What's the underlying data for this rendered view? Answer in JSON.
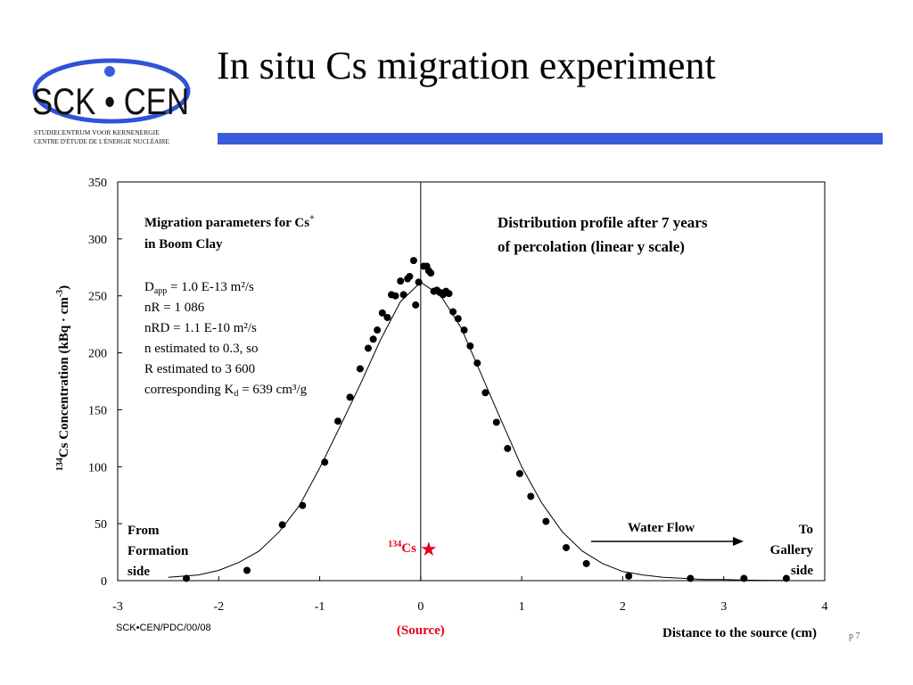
{
  "header": {
    "title": "In situ Cs migration experiment",
    "accent_color": "#3b5bdb"
  },
  "logo": {
    "name": "SCK • CEN",
    "line1": "STUDIECENTRUM VOOR KERNENERGIE",
    "line2": "CENTRE D'ÉTUDE DE L'ÉNERGIE NUCLÉAIRE"
  },
  "chart_data": {
    "type": "scatter",
    "xlabel": "Distance to the source (cm)",
    "ylabel_sup": "134",
    "ylabel": "Cs Concentration (kBq · cm",
    "ylabel_unit_sup": "-3",
    "ylabel_close": ")",
    "xlim": [
      -3,
      4
    ],
    "ylim": [
      0,
      350
    ],
    "xticks": [
      "-3",
      "-2",
      "-1",
      "0",
      "1",
      "2",
      "3",
      "4"
    ],
    "yticks": [
      "0",
      "50",
      "100",
      "150",
      "200",
      "250",
      "300",
      "350"
    ],
    "series": [
      {
        "marker": "filled-circle",
        "x": [
          -2.32,
          -1.72,
          -1.37,
          -1.17,
          -0.95,
          -0.82,
          -0.7,
          -0.6,
          -0.52,
          -0.47,
          -0.43,
          -0.38,
          -0.33,
          -0.29,
          -0.25,
          -0.2,
          -0.17,
          -0.13,
          -0.11,
          -0.07,
          -0.05,
          -0.02,
          0.03,
          0.06,
          0.08,
          0.1,
          0.13,
          0.16,
          0.19,
          0.22,
          0.25,
          0.28,
          0.32,
          0.37,
          0.43,
          0.49,
          0.56,
          0.64,
          0.75,
          0.86,
          0.98,
          1.09,
          1.24,
          1.44,
          1.64,
          2.06,
          2.67,
          3.2,
          3.62
        ],
        "y": [
          2,
          9,
          49,
          66,
          104,
          140,
          161,
          186,
          204,
          212,
          220,
          235,
          231,
          251,
          250,
          263,
          251,
          265,
          267,
          281,
          242,
          262,
          276,
          276,
          272,
          270,
          254,
          255,
          253,
          251,
          254,
          252,
          236,
          230,
          220,
          206,
          191,
          165,
          139,
          116,
          94,
          74,
          52,
          29,
          15,
          4,
          2,
          2,
          2
        ]
      },
      {
        "marker": "line",
        "x": [
          -2.5,
          -2.2,
          -2.0,
          -1.8,
          -1.6,
          -1.4,
          -1.2,
          -1.0,
          -0.8,
          -0.6,
          -0.4,
          -0.2,
          0.0,
          0.2,
          0.4,
          0.6,
          0.8,
          1.0,
          1.2,
          1.4,
          1.6,
          1.8,
          2.0,
          2.2,
          2.4,
          2.6,
          2.8,
          3.0,
          3.2,
          3.4,
          3.6
        ],
        "y": [
          3,
          5,
          9,
          16,
          26,
          43,
          66,
          99,
          135,
          172,
          211,
          245,
          262,
          250,
          222,
          181,
          140,
          100,
          68,
          43,
          26,
          15,
          8,
          5,
          3,
          2,
          1,
          1,
          0.5,
          0.3,
          0.2
        ]
      }
    ],
    "source_marker": {
      "x": 0.08,
      "y": 28,
      "label_sup": "134",
      "label": "Cs",
      "caption": "(Source)",
      "color": "#e8001c"
    },
    "annotations": {
      "params_title_1": "Migration parameters for Cs",
      "params_title_sup": "+",
      "params_title_2": "in Boom Clay",
      "dapp_prefix": "D",
      "dapp_sub": "app",
      "dapp_value": " = 1.0 E-13 m²/s",
      "nr": "nR = 1 086",
      "nrd": "nRD = 1.1 E-10 m²/s",
      "n_est": "n estimated to 0.3, so",
      "r_est": "R estimated to 3 600",
      "kd_prefix": "corresponding K",
      "kd_sub": "d",
      "kd_value": " = 639 cm³/g",
      "profile_line1": "Distribution profile after 7 years",
      "profile_line2": "of percolation (linear y scale)",
      "from_1": "From",
      "from_2": "Formation",
      "from_3": "side",
      "water_flow": "Water Flow",
      "to_1": "To",
      "to_2": "Gallery",
      "to_3": "side"
    }
  },
  "footer": {
    "reference": "SCK•CEN/PDC/00/08",
    "page": "p 7"
  }
}
